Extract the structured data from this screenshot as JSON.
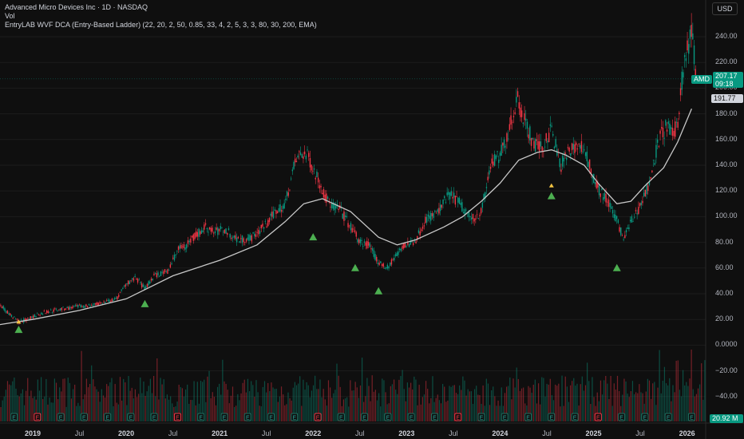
{
  "legend": {
    "title": "Advanced Micro Devices Inc · 1D · NASDAQ",
    "vol": "Vol",
    "indicator": "EntryLAB WVF DCA (Entry-Based Ladder) (22, 20, 2, 50, 0.85, 33, 4, 2, 5, 3, 3, 80, 30, 200, EMA)"
  },
  "currency_button": "USD",
  "price_axis": [
    "240.00",
    "220.00",
    "200.00",
    "180.00",
    "160.00",
    "140.00",
    "120.00",
    "100.00",
    "80.00",
    "60.00",
    "40.00",
    "20.00",
    "0.0000",
    "−20.00",
    "−40.00"
  ],
  "time_axis": [
    {
      "label": "2019",
      "year": true
    },
    {
      "label": "Jul",
      "year": false
    },
    {
      "label": "2020",
      "year": true
    },
    {
      "label": "Jul",
      "year": false
    },
    {
      "label": "2021",
      "year": true
    },
    {
      "label": "Jul",
      "year": false
    },
    {
      "label": "2022",
      "year": true
    },
    {
      "label": "Jul",
      "year": false
    },
    {
      "label": "2023",
      "year": true
    },
    {
      "label": "Jul",
      "year": false
    },
    {
      "label": "2024",
      "year": true
    },
    {
      "label": "Jul",
      "year": false
    },
    {
      "label": "2025",
      "year": true
    },
    {
      "label": "Jul",
      "year": false
    },
    {
      "label": "2026",
      "year": true
    }
  ],
  "badges": {
    "symbol": "AMD",
    "last_price": "207.17",
    "countdown": "09:18",
    "ema_value": "191.77",
    "volume_value": "20.92 M"
  },
  "colors": {
    "up": "#089981",
    "down": "#f23645",
    "ema": "#c8c8c8",
    "signal_big": "#4caf50",
    "signal_small": "#f5c542",
    "earnings": "#1f6e5f"
  },
  "chart_data": {
    "type": "line",
    "x_start": 2018.65,
    "x_end": 2026.2,
    "ylim": [
      -50,
      260
    ],
    "price": {
      "x": [
        2018.65,
        2018.75,
        2018.85,
        2018.95,
        2019.05,
        2019.15,
        2019.3,
        2019.5,
        2019.7,
        2019.9,
        2020.0,
        2020.1,
        2020.2,
        2020.3,
        2020.45,
        2020.55,
        2020.65,
        2020.75,
        2020.85,
        2020.95,
        2021.05,
        2021.2,
        2021.35,
        2021.5,
        2021.6,
        2021.7,
        2021.8,
        2021.87,
        2021.95,
        2022.05,
        2022.15,
        2022.3,
        2022.4,
        2022.5,
        2022.6,
        2022.7,
        2022.8,
        2022.9,
        2023.0,
        2023.1,
        2023.2,
        2023.35,
        2023.45,
        2023.55,
        2023.7,
        2023.8,
        2023.9,
        2024.0,
        2024.1,
        2024.18,
        2024.25,
        2024.35,
        2024.45,
        2024.55,
        2024.65,
        2024.75,
        2024.85,
        2024.95,
        2025.05,
        2025.15,
        2025.25,
        2025.32,
        2025.4,
        2025.5,
        2025.6,
        2025.7,
        2025.78,
        2025.85,
        2025.9,
        2025.95,
        2026.0,
        2026.05,
        2026.1
      ],
      "y": [
        32,
        24,
        18,
        20,
        24,
        26,
        28,
        30,
        32,
        36,
        48,
        52,
        44,
        54,
        58,
        74,
        78,
        86,
        92,
        88,
        90,
        82,
        84,
        94,
        104,
        110,
        140,
        150,
        146,
        130,
        112,
        104,
        92,
        80,
        78,
        64,
        60,
        72,
        78,
        82,
        98,
        104,
        118,
        112,
        98,
        104,
        140,
        148,
        168,
        192,
        178,
        158,
        152,
        168,
        140,
        152,
        156,
        142,
        122,
        112,
        98,
        82,
        96,
        108,
        128,
        160,
        170,
        162,
        174,
        210,
        228,
        246,
        210
      ]
    },
    "ema": {
      "x": [
        2018.65,
        2019.0,
        2019.5,
        2020.0,
        2020.5,
        2021.0,
        2021.4,
        2021.7,
        2021.9,
        2022.1,
        2022.4,
        2022.7,
        2022.9,
        2023.1,
        2023.4,
        2023.6,
        2023.8,
        2024.0,
        2024.2,
        2024.4,
        2024.55,
        2024.7,
        2024.9,
        2025.05,
        2025.25,
        2025.4,
        2025.55,
        2025.75,
        2025.9,
        2026.05
      ],
      "y": [
        16,
        20,
        27,
        36,
        54,
        66,
        78,
        96,
        110,
        114,
        104,
        84,
        78,
        82,
        92,
        100,
        112,
        126,
        144,
        150,
        152,
        148,
        140,
        126,
        110,
        112,
        124,
        138,
        158,
        184
      ]
    },
    "volume": {
      "zero_y": 0,
      "approx_max": 110
    },
    "signals_big": [
      {
        "x": 2018.85,
        "y": 12
      },
      {
        "x": 2020.2,
        "y": 32
      },
      {
        "x": 2022.0,
        "y": 84
      },
      {
        "x": 2022.45,
        "y": 60
      },
      {
        "x": 2022.7,
        "y": 42
      },
      {
        "x": 2024.55,
        "y": 116
      },
      {
        "x": 2025.25,
        "y": 60
      }
    ],
    "signals_small": [
      {
        "x": 2018.85,
        "y": 18
      },
      {
        "x": 2024.55,
        "y": 124
      }
    ],
    "earnings_x": [
      2018.8,
      2019.05,
      2019.3,
      2019.55,
      2019.8,
      2020.05,
      2020.3,
      2020.55,
      2020.8,
      2021.05,
      2021.3,
      2021.55,
      2021.8,
      2022.05,
      2022.3,
      2022.55,
      2022.8,
      2023.05,
      2023.3,
      2023.55,
      2023.8,
      2024.05,
      2024.3,
      2024.55,
      2024.8,
      2025.05,
      2025.3,
      2025.55,
      2025.8,
      2026.05
    ],
    "earnings_label": "E",
    "last_price": 207.17,
    "ema_last": 191.77
  }
}
